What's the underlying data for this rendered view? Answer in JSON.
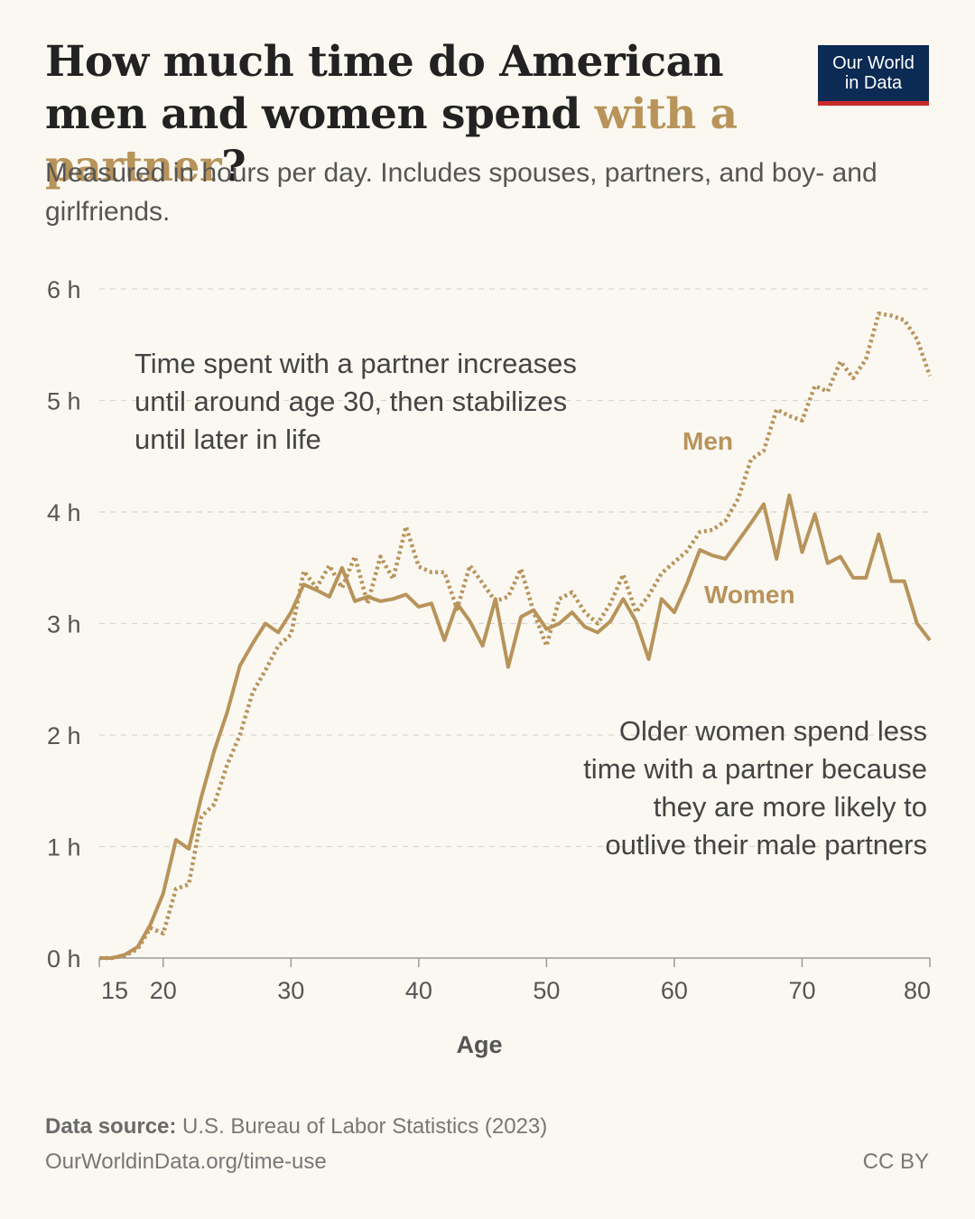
{
  "header": {
    "title_part1": "How much time do American men and women spend ",
    "title_highlight": "with a partner",
    "title_part2": "?",
    "subtitle": "Measured in hours per day. Includes spouses, partners, and boy- and girlfriends.",
    "logo_line1": "Our World",
    "logo_line2": "in Data"
  },
  "colors": {
    "series": "#b8935a",
    "logo_bg": "#0b2a54",
    "logo_bar": "#c92b2b",
    "background": "#faf8f1"
  },
  "chart_data": {
    "type": "line",
    "xlabel": "Age",
    "ylabel": "",
    "xlim": [
      15,
      80
    ],
    "ylim": [
      0,
      6
    ],
    "x_ticks": [
      15,
      20,
      30,
      40,
      50,
      60,
      70,
      80
    ],
    "y_ticks": [
      0,
      1,
      2,
      3,
      4,
      5,
      6
    ],
    "y_tick_labels": [
      "0 h",
      "1 h",
      "2 h",
      "3 h",
      "4 h",
      "5 h",
      "6 h"
    ],
    "grid": "horizontal dashed",
    "x": [
      15,
      16,
      17,
      18,
      19,
      20,
      21,
      22,
      23,
      24,
      25,
      26,
      27,
      28,
      29,
      30,
      31,
      32,
      33,
      34,
      35,
      36,
      37,
      38,
      39,
      40,
      41,
      42,
      43,
      44,
      45,
      46,
      47,
      48,
      49,
      50,
      51,
      52,
      53,
      54,
      55,
      56,
      57,
      58,
      59,
      60,
      61,
      62,
      63,
      64,
      65,
      66,
      67,
      68,
      69,
      70,
      71,
      72,
      73,
      74,
      75,
      76,
      77,
      78,
      79,
      80
    ],
    "series": [
      {
        "name": "Men",
        "style": "dotted",
        "values": [
          0.0,
          0.0,
          0.02,
          0.08,
          0.27,
          0.22,
          0.62,
          0.66,
          1.27,
          1.38,
          1.73,
          2.0,
          2.38,
          2.58,
          2.8,
          2.9,
          3.47,
          3.32,
          3.52,
          3.32,
          3.6,
          3.18,
          3.6,
          3.4,
          3.87,
          3.51,
          3.46,
          3.46,
          3.13,
          3.52,
          3.36,
          3.2,
          3.24,
          3.49,
          3.1,
          2.8,
          3.22,
          3.28,
          3.1,
          3.0,
          3.18,
          3.44,
          3.1,
          3.25,
          3.45,
          3.55,
          3.65,
          3.82,
          3.84,
          3.92,
          4.12,
          4.47,
          4.55,
          4.92,
          4.86,
          4.82,
          5.13,
          5.08,
          5.35,
          5.2,
          5.37,
          5.78,
          5.76,
          5.72,
          5.55,
          5.22
        ]
      },
      {
        "name": "Women",
        "style": "solid",
        "values": [
          0.0,
          0.0,
          0.03,
          0.1,
          0.3,
          0.58,
          1.06,
          0.98,
          1.45,
          1.86,
          2.2,
          2.62,
          2.82,
          3.0,
          2.92,
          3.1,
          3.35,
          3.3,
          3.24,
          3.5,
          3.2,
          3.24,
          3.2,
          3.22,
          3.26,
          3.15,
          3.18,
          2.85,
          3.18,
          3.02,
          2.8,
          3.22,
          2.61,
          3.06,
          3.12,
          2.95,
          3.0,
          3.1,
          2.97,
          2.92,
          3.02,
          3.22,
          3.02,
          2.68,
          3.22,
          3.1,
          3.36,
          3.66,
          3.61,
          3.58,
          3.74,
          3.9,
          4.07,
          3.58,
          4.15,
          3.64,
          3.98,
          3.54,
          3.6,
          3.41,
          3.41,
          3.8,
          3.38,
          3.38,
          3.0,
          2.85
        ]
      }
    ],
    "series_labels": [
      "Men",
      "Women"
    ],
    "annotations": [
      "Time spent with a partner increases until around age 30, then stabilizes until later in life",
      "Older women spend less time with a partner because they are more likely to outlive their male partners"
    ]
  },
  "footer": {
    "source_label": "Data source:",
    "source_text": " U.S. Bureau of Labor Statistics (2023)",
    "url": "OurWorldinData.org/time-use",
    "license": "CC BY"
  }
}
